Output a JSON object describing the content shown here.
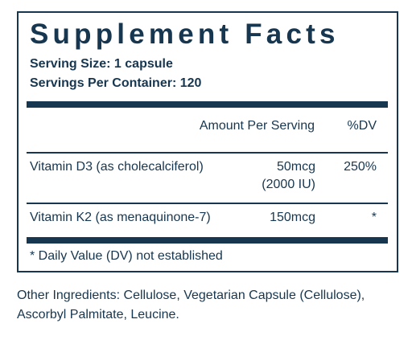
{
  "title": "Supplement Facts",
  "serving_size": "Serving Size: 1 capsule",
  "servings_per_container": "Servings Per Container: 120",
  "columns": {
    "amount": "Amount Per Serving",
    "dv": "%DV"
  },
  "nutrients": [
    {
      "name": "Vitamin D3 (as cholecalciferol)",
      "amount": "50mcg",
      "amount_alt": "(2000 IU)",
      "dv": "250%"
    },
    {
      "name": "Vitamin K2 (as menaquinone-7)",
      "amount": "150mcg",
      "dv": "*"
    }
  ],
  "footnote": "* Daily Value (DV) not established",
  "other_ingredients": {
    "line1": "Other Ingredients: Cellulose, Vegetarian Capsule (Cellulose),",
    "line2": "Ascorbyl Palmitate, Leucine."
  },
  "colors": {
    "ink": "#17364f",
    "background": "#ffffff"
  }
}
